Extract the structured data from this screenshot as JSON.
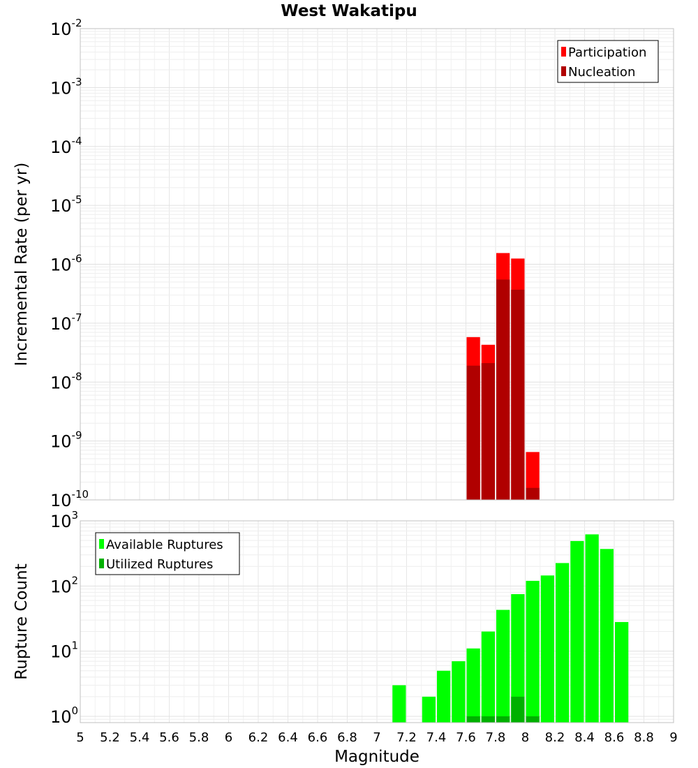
{
  "chart_data": [
    {
      "type": "bar",
      "title": "West Wakatipu",
      "ylabel": "Incremental Rate (per yr)",
      "xlabel": "",
      "yscale": "log",
      "ylim": [
        1e-10,
        0.01
      ],
      "xlim": [
        5,
        9
      ],
      "bar_width": 0.1,
      "ytick_base": "10",
      "yticks": [
        {
          "value": 0.01,
          "exp": "-2"
        },
        {
          "value": 0.001,
          "exp": "-3"
        },
        {
          "value": 0.0001,
          "exp": "-4"
        },
        {
          "value": 1e-05,
          "exp": "-5"
        },
        {
          "value": 1e-06,
          "exp": "-6"
        },
        {
          "value": 1e-07,
          "exp": "-7"
        },
        {
          "value": 1e-08,
          "exp": "-8"
        },
        {
          "value": 1e-09,
          "exp": "-9"
        },
        {
          "value": 1e-10,
          "exp": "-10"
        }
      ],
      "legend_position": "top-right",
      "series": [
        {
          "name": "Participation",
          "color": "#ff0000",
          "x": [
            7.65,
            7.75,
            7.85,
            7.95,
            8.05
          ],
          "values": [
            5.8e-08,
            4.3e-08,
            1.55e-06,
            1.25e-06,
            6.5e-10
          ]
        },
        {
          "name": "Nucleation",
          "color": "#b00000",
          "x": [
            7.65,
            7.75,
            7.85,
            7.95,
            8.05
          ],
          "values": [
            1.9e-08,
            2.1e-08,
            5.5e-07,
            3.7e-07,
            1.6e-10
          ]
        }
      ]
    },
    {
      "type": "bar",
      "title": "",
      "ylabel": "Rupture Count",
      "xlabel": "Magnitude",
      "yscale": "log",
      "ylim": [
        0.8,
        1000
      ],
      "xlim": [
        5,
        9
      ],
      "bar_width": 0.1,
      "ytick_base": "10",
      "yticks": [
        {
          "value": 1,
          "exp": "0"
        },
        {
          "value": 10,
          "exp": "1"
        },
        {
          "value": 100,
          "exp": "2"
        },
        {
          "value": 1000,
          "exp": "3"
        }
      ],
      "xticks": [
        "5",
        "5.2",
        "5.4",
        "5.6",
        "5.8",
        "6",
        "6.2",
        "6.4",
        "6.6",
        "6.8",
        "7",
        "7.2",
        "7.4",
        "7.6",
        "7.8",
        "8",
        "8.2",
        "8.4",
        "8.6",
        "8.8",
        "9"
      ],
      "legend_position": "top-left",
      "series": [
        {
          "name": "Available Ruptures",
          "color": "#00ff00",
          "x": [
            7.15,
            7.35,
            7.45,
            7.55,
            7.65,
            7.75,
            7.85,
            7.95,
            8.05,
            8.15,
            8.25,
            8.35,
            8.45,
            8.55,
            8.65
          ],
          "values": [
            3,
            2,
            5,
            7,
            11,
            20,
            43,
            75,
            120,
            145,
            225,
            490,
            620,
            370,
            28
          ]
        },
        {
          "name": "Utilized Ruptures",
          "color": "#00b000",
          "x": [
            7.65,
            7.75,
            7.85,
            7.95,
            8.05
          ],
          "values": [
            1,
            1,
            1,
            2,
            1
          ]
        }
      ]
    }
  ]
}
